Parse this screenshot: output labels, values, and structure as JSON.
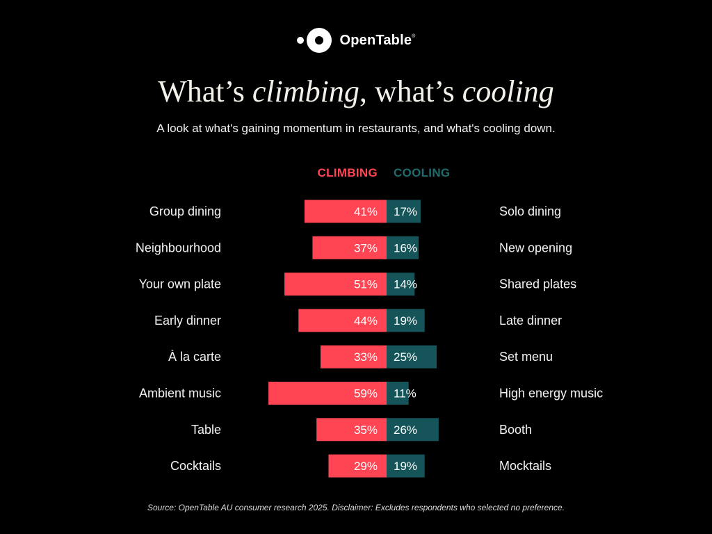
{
  "brand": {
    "name": "OpenTable",
    "mark": "®"
  },
  "colors": {
    "climbing": "#ff4553",
    "cooling": "#15555a",
    "background": "#000000"
  },
  "chart_data": {
    "type": "bar",
    "orientation": "horizontal-diverging",
    "title": {
      "part1": "What’s ",
      "em1": "climbing",
      "part2": ", what’s ",
      "em2": "cooling"
    },
    "subtitle": "A look at what's gaining momentum in restaurants, and what's cooling down.",
    "legend": {
      "climbing": "CLIMBING",
      "cooling": "COOLING",
      "position": "top-center"
    },
    "series": [
      {
        "name": "CLIMBING",
        "values": [
          41,
          37,
          51,
          44,
          33,
          59,
          35,
          29
        ]
      },
      {
        "name": "COOLING",
        "values": [
          17,
          16,
          14,
          19,
          25,
          11,
          26,
          19
        ]
      }
    ],
    "rows": [
      {
        "climbing_label": "Group dining",
        "cooling_label": "Solo dining",
        "climbing": 41,
        "cooling": 17
      },
      {
        "climbing_label": "Neighbourhood",
        "cooling_label": "New opening",
        "climbing": 37,
        "cooling": 16
      },
      {
        "climbing_label": "Your own plate",
        "cooling_label": "Shared plates",
        "climbing": 51,
        "cooling": 14
      },
      {
        "climbing_label": "Early dinner",
        "cooling_label": "Late dinner",
        "climbing": 44,
        "cooling": 19
      },
      {
        "climbing_label": "À la carte",
        "cooling_label": "Set menu",
        "climbing": 33,
        "cooling": 25
      },
      {
        "climbing_label": "Ambient music",
        "cooling_label": "High energy music",
        "climbing": 59,
        "cooling": 11
      },
      {
        "climbing_label": "Table",
        "cooling_label": "Booth",
        "climbing": 35,
        "cooling": 26
      },
      {
        "climbing_label": "Cocktails",
        "cooling_label": "Mocktails",
        "climbing": 29,
        "cooling": 19
      }
    ],
    "value_suffix": "%",
    "grid": false,
    "source": "Source: OpenTable AU consumer research 2025. Disclaimer: Excludes respondents who selected no preference."
  }
}
